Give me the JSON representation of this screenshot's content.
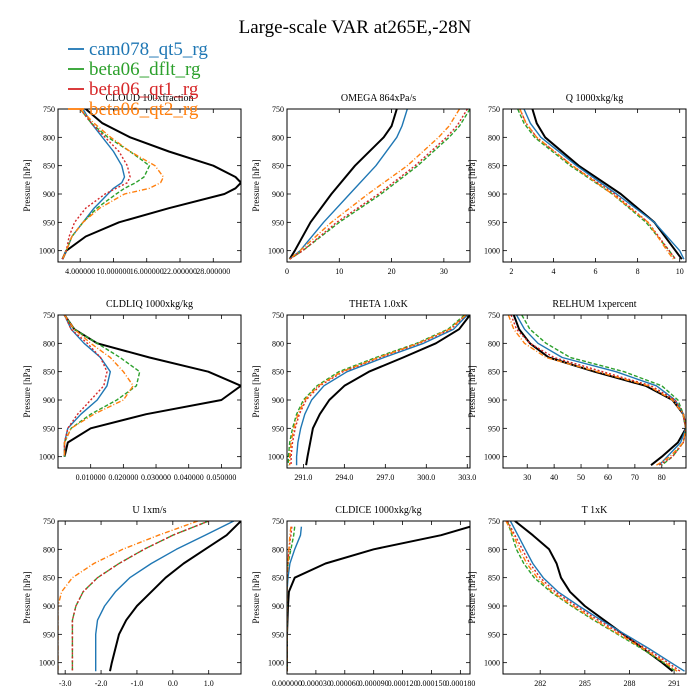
{
  "figure": {
    "title": "Large-scale VAR at265E,-28N"
  },
  "legend": [
    {
      "name": "cam078_qt5_rg",
      "color": "#1f77b4",
      "dash": ""
    },
    {
      "name": "beta06_dflt_rg",
      "color": "#2ca02c",
      "dash": "4,2"
    },
    {
      "name": "beta06_qt1_rg",
      "color": "#d62728",
      "dash": "2,2"
    },
    {
      "name": "beta06_qt2_rg",
      "color": "#ff7f0e",
      "dash": "5,2,1,2"
    }
  ],
  "chart_data": [
    {
      "type": "line",
      "title": "CLOUD 100xfraction",
      "ylabel": "Pressure [hPa]",
      "xlim": [
        0,
        33
      ],
      "ylim": [
        750,
        1020
      ],
      "xticks": [
        4,
        10,
        16,
        22,
        28
      ],
      "xticklabels": [
        "4.000000",
        "10.000000",
        "16.000000",
        "22.000000",
        "28.000000"
      ],
      "yticks": [
        750,
        800,
        850,
        900,
        950,
        1000
      ],
      "y": [
        750,
        775,
        800,
        825,
        850,
        870,
        880,
        890,
        900,
        925,
        950,
        975,
        1000,
        1015
      ],
      "series": [
        {
          "name": "black",
          "values": [
            5,
            8,
            13,
            20,
            28,
            32,
            33,
            32,
            30,
            20,
            11,
            5,
            1.5,
            0.8
          ]
        },
        {
          "name": "cam078_qt5_rg",
          "values": [
            4.5,
            6,
            8,
            10,
            11.5,
            12,
            11.5,
            10,
            9,
            6.5,
            4.5,
            2.5,
            1.5,
            0.8
          ]
        },
        {
          "name": "beta06_dflt_rg",
          "values": [
            4,
            6,
            9,
            13,
            16.5,
            15.5,
            14,
            12,
            10.5,
            7,
            4.5,
            2.5,
            1.5,
            0.8
          ]
        },
        {
          "name": "beta06_qt1_rg",
          "values": [
            4,
            6,
            8.5,
            11,
            12.5,
            13,
            12.5,
            10.5,
            8.5,
            5,
            3,
            2,
            1.5,
            0.8
          ]
        },
        {
          "name": "beta06_qt2_rg",
          "values": [
            4,
            6.5,
            9.5,
            13,
            17.5,
            19,
            18.5,
            16.5,
            12,
            7.5,
            4.5,
            2.5,
            1.5,
            0.8
          ]
        }
      ]
    },
    {
      "type": "line",
      "title": "OMEGA 864xPa/s",
      "ylabel": "Pressure [hPa]",
      "xlim": [
        0,
        35
      ],
      "ylim": [
        750,
        1020
      ],
      "xticks": [
        0,
        10,
        20,
        30
      ],
      "xticklabels": [
        "0",
        "10",
        "20",
        "30"
      ],
      "yticks": [
        750,
        800,
        850,
        900,
        950,
        1000
      ],
      "y": [
        750,
        780,
        800,
        850,
        900,
        950,
        1000,
        1015
      ],
      "series": [
        {
          "name": "black",
          "values": [
            21,
            20,
            18.5,
            13,
            8.5,
            4.5,
            1.5,
            0.5
          ]
        },
        {
          "name": "cam078_qt5_rg",
          "values": [
            23,
            22,
            21,
            17,
            12,
            7,
            2.5,
            0.5
          ]
        },
        {
          "name": "beta06_dflt_rg",
          "values": [
            35,
            33,
            31,
            25,
            18,
            10,
            3,
            0.5
          ]
        },
        {
          "name": "beta06_qt1_rg",
          "values": [
            34.5,
            32.5,
            30.5,
            24.5,
            17.5,
            9.5,
            3,
            0.5
          ]
        },
        {
          "name": "beta06_qt2_rg",
          "values": [
            33,
            31,
            29,
            23,
            15.5,
            8.5,
            2.5,
            0.5
          ]
        }
      ]
    },
    {
      "type": "line",
      "title": "Q 1000xkg/kg",
      "ylabel": "Pressure [hPa]",
      "xlim": [
        1.6,
        10.3
      ],
      "ylim": [
        750,
        1020
      ],
      "xticks": [
        2,
        4,
        6,
        8,
        10
      ],
      "xticklabels": [
        "2",
        "4",
        "6",
        "8",
        "10"
      ],
      "yticks": [
        750,
        800,
        850,
        900,
        950,
        1000
      ],
      "y": [
        750,
        775,
        800,
        850,
        900,
        950,
        1000,
        1015
      ],
      "series": [
        {
          "name": "black",
          "values": [
            3,
            3.2,
            3.6,
            5.2,
            7.2,
            8.8,
            9.8,
            10.1
          ]
        },
        {
          "name": "cam078_qt5_rg",
          "values": [
            2.6,
            2.9,
            3.4,
            5.1,
            7,
            8.8,
            10,
            10.2
          ]
        },
        {
          "name": "beta06_dflt_rg",
          "values": [
            2.3,
            2.6,
            3.1,
            4.8,
            6.8,
            8.4,
            9.5,
            9.8
          ]
        },
        {
          "name": "beta06_qt1_rg",
          "values": [
            2.4,
            2.7,
            3.2,
            4.9,
            6.9,
            8.5,
            9.5,
            9.8
          ]
        },
        {
          "name": "beta06_qt2_rg",
          "values": [
            2.4,
            2.7,
            3.2,
            4.9,
            6.8,
            8.5,
            9.4,
            9.7
          ]
        }
      ]
    },
    {
      "type": "line",
      "title": "CLDLIQ 1000xkg/kg",
      "ylabel": "Pressure [hPa]",
      "xlim": [
        0,
        0.056
      ],
      "ylim": [
        750,
        1020
      ],
      "xticks": [
        0.01,
        0.02,
        0.03,
        0.04,
        0.05
      ],
      "xticklabels": [
        "0.010000",
        "0.020000",
        "0.030000",
        "0.040000",
        "0.050000"
      ],
      "yticks": [
        750,
        800,
        850,
        900,
        950,
        1000
      ],
      "y": [
        750,
        775,
        800,
        825,
        850,
        875,
        900,
        925,
        950,
        975,
        1000
      ],
      "series": [
        {
          "name": "black",
          "values": [
            0.002,
            0.005,
            0.012,
            0.028,
            0.046,
            0.056,
            0.05,
            0.027,
            0.01,
            0.003,
            0.002
          ]
        },
        {
          "name": "cam078_qt5_rg",
          "values": [
            0.002,
            0.004,
            0.008,
            0.013,
            0.016,
            0.015,
            0.012,
            0.007,
            0.003,
            0.002,
            0.002
          ]
        },
        {
          "name": "beta06_dflt_rg",
          "values": [
            0.002,
            0.005,
            0.012,
            0.019,
            0.025,
            0.024,
            0.018,
            0.01,
            0.004,
            0.002,
            0.002
          ]
        },
        {
          "name": "beta06_qt1_rg",
          "values": [
            0.002,
            0.004,
            0.009,
            0.013,
            0.015,
            0.014,
            0.01,
            0.006,
            0.003,
            0.002,
            0.002
          ]
        },
        {
          "name": "beta06_qt2_rg",
          "values": [
            0.002,
            0.005,
            0.01,
            0.016,
            0.02,
            0.023,
            0.02,
            0.011,
            0.004,
            0.002,
            0.002
          ]
        }
      ]
    },
    {
      "type": "line",
      "title": "THETA 1.0xK",
      "ylabel": "Pressure [hPa]",
      "xlim": [
        289.8,
        303.2
      ],
      "ylim": [
        750,
        1020
      ],
      "xticks": [
        291,
        294,
        297,
        300,
        303
      ],
      "xticklabels": [
        "291.0",
        "294.0",
        "297.0",
        "300.0",
        "303.0"
      ],
      "yticks": [
        750,
        800,
        850,
        900,
        950,
        1000
      ],
      "y": [
        750,
        775,
        800,
        825,
        850,
        875,
        900,
        925,
        950,
        975,
        1000,
        1015
      ],
      "series": [
        {
          "name": "black",
          "values": [
            303.2,
            302.4,
            300.7,
            298.3,
            295.8,
            294,
            292.9,
            292.2,
            291.7,
            291.5,
            291.3,
            291.2
          ]
        },
        {
          "name": "cam078_qt5_rg",
          "values": [
            303,
            302,
            299.8,
            296.9,
            294.2,
            292.5,
            291.6,
            291.1,
            290.8,
            290.6,
            290.5,
            290.5
          ]
        },
        {
          "name": "beta06_dflt_rg",
          "values": [
            302.8,
            301.6,
            299.3,
            296.3,
            293.6,
            292,
            291,
            290.5,
            290.2,
            290,
            289.9,
            289.9
          ]
        },
        {
          "name": "beta06_qt1_rg",
          "values": [
            302.9,
            301.8,
            299.5,
            296.6,
            293.9,
            292.2,
            291.2,
            290.7,
            290.4,
            290.2,
            290.1,
            290.1
          ]
        },
        {
          "name": "beta06_qt2_rg",
          "values": [
            302.9,
            301.7,
            299.4,
            296.5,
            293.8,
            292.1,
            291.1,
            290.6,
            290.3,
            290.1,
            290,
            290
          ]
        }
      ]
    },
    {
      "type": "line",
      "title": "RELHUM 1xpercent",
      "ylabel": "Pressure [hPa]",
      "xlim": [
        21,
        89
      ],
      "ylim": [
        750,
        1020
      ],
      "xticks": [
        30,
        40,
        50,
        60,
        70,
        80
      ],
      "xticklabels": [
        "30",
        "40",
        "50",
        "60",
        "70",
        "80"
      ],
      "yticks": [
        750,
        800,
        850,
        900,
        950,
        1000
      ],
      "y": [
        750,
        775,
        800,
        825,
        850,
        875,
        900,
        925,
        950,
        975,
        1000,
        1015
      ],
      "series": [
        {
          "name": "black",
          "values": [
            25,
            27,
            31,
            38,
            55,
            74,
            84,
            88,
            89,
            86,
            80,
            76
          ]
        },
        {
          "name": "cam078_qt5_rg",
          "values": [
            26,
            29,
            34,
            43,
            63,
            78,
            85,
            88,
            89,
            87,
            82,
            79
          ]
        },
        {
          "name": "beta06_dflt_rg",
          "values": [
            28,
            31,
            37,
            46,
            66,
            80,
            86,
            88,
            89,
            88,
            84,
            80
          ]
        },
        {
          "name": "beta06_qt1_rg",
          "values": [
            24,
            26,
            31,
            40,
            58,
            76,
            85,
            88,
            89,
            88,
            84,
            79
          ]
        },
        {
          "name": "beta06_qt2_rg",
          "values": [
            23,
            25,
            29,
            37,
            56,
            75,
            84,
            88,
            89,
            88,
            83,
            78
          ]
        }
      ]
    },
    {
      "type": "line",
      "title": "U 1xm/s",
      "ylabel": "Pressure [hPa]",
      "xlim": [
        -3.2,
        1.9
      ],
      "ylim": [
        750,
        1020
      ],
      "xticks": [
        -3,
        -2,
        -1,
        0,
        1
      ],
      "xticklabels": [
        "-3.0",
        "-2.0",
        "-1.0",
        "0.0",
        "1.0"
      ],
      "yticks": [
        750,
        800,
        850,
        900,
        950,
        1000
      ],
      "y": [
        750,
        775,
        800,
        825,
        850,
        875,
        900,
        925,
        950,
        975,
        1000,
        1015
      ],
      "series": [
        {
          "name": "black",
          "values": [
            1.9,
            1.5,
            0.9,
            0.3,
            -0.2,
            -0.6,
            -1,
            -1.3,
            -1.5,
            -1.6,
            -1.7,
            -1.75
          ]
        },
        {
          "name": "cam078_qt5_rg",
          "values": [
            1.7,
            0.9,
            0.1,
            -0.6,
            -1.2,
            -1.6,
            -1.9,
            -2.1,
            -2.15,
            -2.15,
            -2.15,
            -2.15
          ]
        },
        {
          "name": "beta06_dflt_rg",
          "values": [
            1,
            0,
            -0.8,
            -1.5,
            -2.1,
            -2.5,
            -2.7,
            -2.8,
            -2.8,
            -2.8,
            -2.8,
            -2.8
          ]
        },
        {
          "name": "beta06_qt1_rg",
          "values": [
            1,
            0,
            -0.8,
            -1.5,
            -2.1,
            -2.5,
            -2.7,
            -2.8,
            -2.8,
            -2.8,
            -2.8,
            -2.8
          ]
        },
        {
          "name": "beta06_qt2_rg",
          "values": [
            0.7,
            -0.4,
            -1.4,
            -2.2,
            -2.8,
            -3.1,
            -3.2,
            -3.2,
            -3.2,
            -3.2,
            -3.2,
            -3.2
          ]
        }
      ]
    },
    {
      "type": "line",
      "title": "CLDICE 1000xkg/kg",
      "ylabel": "Pressure [hPa]",
      "xlim": [
        0,
        0.00019
      ],
      "ylim": [
        750,
        1020
      ],
      "xticks": [
        0,
        3e-05,
        6e-05,
        9e-05,
        0.00012,
        0.00015,
        0.00018
      ],
      "xticklabels": [
        "0.000000",
        "0.000030",
        "0.000060",
        "0.000090",
        "0.000120",
        "0.000150",
        "0.000180"
      ],
      "yticks": [
        750,
        800,
        850,
        900,
        950,
        1000
      ],
      "y": [
        760,
        775,
        800,
        825,
        850,
        875,
        900,
        950,
        1000,
        1015
      ],
      "series": [
        {
          "name": "black",
          "values": [
            0.00019,
            0.00016,
            9e-05,
            4e-05,
            8e-06,
            2e-06,
            1e-06,
            0,
            0,
            0
          ]
        },
        {
          "name": "cam078_qt5_rg",
          "values": [
            1.5e-05,
            1.4e-05,
            8e-06,
            3e-06,
            1e-06,
            0,
            0,
            0,
            0,
            0
          ]
        },
        {
          "name": "beta06_dflt_rg",
          "values": [
            8e-06,
            7e-06,
            4e-06,
            1e-06,
            0,
            0,
            0,
            0,
            0,
            0
          ]
        },
        {
          "name": "beta06_qt1_rg",
          "values": [
            5e-06,
            4e-06,
            2e-06,
            1e-06,
            0,
            0,
            0,
            0,
            0,
            0
          ]
        },
        {
          "name": "beta06_qt2_rg",
          "values": [
            4e-06,
            3e-06,
            2e-06,
            1e-06,
            0,
            0,
            0,
            0,
            0,
            0
          ]
        }
      ]
    },
    {
      "type": "line",
      "title": "T 1xK",
      "ylabel": "Pressure [hPa]",
      "xlim": [
        279.5,
        291.8
      ],
      "ylim": [
        750,
        1020
      ],
      "xticks": [
        282,
        285,
        288,
        291
      ],
      "xticklabels": [
        "282",
        "285",
        "288",
        "291"
      ],
      "yticks": [
        750,
        800,
        850,
        900,
        950,
        1000
      ],
      "y": [
        750,
        775,
        800,
        825,
        850,
        875,
        900,
        925,
        950,
        975,
        1000,
        1015
      ],
      "series": [
        {
          "name": "black",
          "values": [
            280.3,
            281.5,
            282.6,
            283.1,
            283.4,
            284,
            285,
            286.3,
            287.6,
            288.9,
            290.2,
            290.9
          ]
        },
        {
          "name": "cam078_qt5_rg",
          "values": [
            280,
            280.5,
            281,
            281.5,
            282.2,
            283.2,
            284.6,
            286.1,
            287.7,
            289.3,
            290.8,
            291.7
          ]
        },
        {
          "name": "beta06_dflt_rg",
          "values": [
            279.8,
            280.1,
            280.4,
            280.9,
            281.6,
            282.7,
            284.1,
            285.6,
            287.2,
            288.8,
            290.3,
            291.1
          ]
        },
        {
          "name": "beta06_qt1_rg",
          "values": [
            279.8,
            280.3,
            280.8,
            281.3,
            282,
            283,
            284.4,
            285.9,
            287.5,
            289.1,
            290.6,
            291.4
          ]
        },
        {
          "name": "beta06_qt2_rg",
          "values": [
            279.7,
            280.2,
            280.6,
            281.1,
            281.8,
            282.8,
            284.2,
            285.7,
            287.3,
            288.9,
            290.4,
            291.2
          ]
        }
      ]
    }
  ]
}
